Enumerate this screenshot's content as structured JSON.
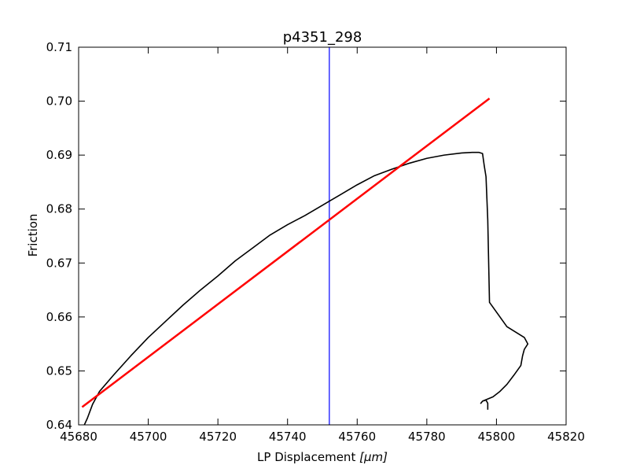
{
  "chart_data": {
    "type": "line",
    "title": "p4351_298",
    "xlabel_text": "LP Displacement ",
    "xlabel_math": "[μm]",
    "ylabel": "Friction",
    "xlim": [
      45680,
      45820
    ],
    "ylim": [
      0.64,
      0.71
    ],
    "xticks": [
      45680,
      45700,
      45720,
      45740,
      45760,
      45780,
      45800,
      45820
    ],
    "xtick_labels": [
      "45680",
      "45700",
      "45720",
      "45740",
      "45760",
      "45780",
      "45800",
      "45820"
    ],
    "yticks": [
      0.64,
      0.65,
      0.66,
      0.67,
      0.68,
      0.69,
      0.7,
      0.71
    ],
    "ytick_labels": [
      "0.64",
      "0.65",
      "0.66",
      "0.67",
      "0.68",
      "0.69",
      "0.70",
      "0.71"
    ],
    "grid": false,
    "series": [
      {
        "color": "#000000",
        "style": "friction-trace",
        "x": [
          45681.5,
          45682.5,
          45684,
          45686,
          45690,
          45695,
          45700,
          45705,
          45710,
          45715,
          45720,
          45725,
          45730,
          45735,
          45740,
          45745,
          45750,
          45755,
          45760,
          45765,
          45770,
          45775,
          45780,
          45785,
          45790,
          45793,
          45795,
          45796,
          45796.5,
          45797,
          45797.5,
          45798,
          45803,
          45808,
          45809,
          45808,
          45807.5,
          45807,
          45805,
          45803,
          45801,
          45799,
          45797.5,
          45796,
          45795.5,
          45796,
          45797,
          45797.5,
          45797.5
        ],
        "y": [
          0.6398,
          0.6412,
          0.6438,
          0.6462,
          0.6492,
          0.6528,
          0.6562,
          0.6592,
          0.6622,
          0.665,
          0.6676,
          0.6704,
          0.6728,
          0.6752,
          0.6771,
          0.6788,
          0.6807,
          0.6826,
          0.6845,
          0.6862,
          0.6874,
          0.6885,
          0.6894,
          0.69,
          0.6904,
          0.6905,
          0.6905,
          0.6903,
          0.688,
          0.686,
          0.678,
          0.6627,
          0.6582,
          0.6562,
          0.655,
          0.654,
          0.6528,
          0.651,
          0.6492,
          0.6475,
          0.6462,
          0.6452,
          0.6448,
          0.6444,
          0.644,
          0.6444,
          0.6446,
          0.644,
          0.6428
        ]
      },
      {
        "color": "#ff0000",
        "style": "linear-fit",
        "x": [
          45681,
          45798
        ],
        "y": [
          0.6433,
          0.7005
        ]
      }
    ],
    "vlines": [
      {
        "x": 45752,
        "color": "#0000ff"
      }
    ]
  }
}
